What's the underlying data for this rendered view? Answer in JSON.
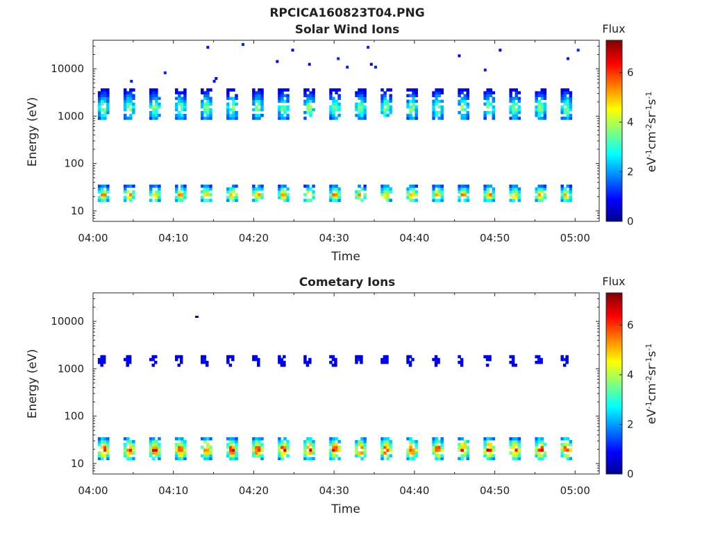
{
  "figure": {
    "title": "RPCICA160823T04.PNG"
  },
  "colormap": {
    "name": "jet",
    "stops": [
      "#00008f",
      "#0000ff",
      "#00ffff",
      "#ffff00",
      "#ff0000",
      "#800000"
    ]
  },
  "chart_data": [
    {
      "type": "heatmap",
      "title": "Solar Wind Ions",
      "xlabel": "Time",
      "ylabel": "Energy (eV)",
      "x_ticks": [
        "04:00",
        "04:10",
        "04:20",
        "04:30",
        "04:40",
        "04:50",
        "05:00"
      ],
      "x_range_min": [
        0,
        63
      ],
      "y_scale": "log",
      "y_ticks": [
        10,
        100,
        1000,
        10000
      ],
      "y_tick_labels": [
        "10",
        "100",
        "1000",
        "10000"
      ],
      "y_range": [
        6,
        40000
      ],
      "colorbar": {
        "title": "Flux",
        "label": "eV-1cm-2sr-1s-1",
        "ticks": [
          0,
          2,
          4,
          6
        ],
        "range": [
          0,
          7.3
        ]
      },
      "scan_period_min": 3.2,
      "scan_start_min": 0.6,
      "scan_count": 19,
      "features": [
        {
          "name": "solar wind beam",
          "energy_center_eV": 1500,
          "energy_span_eV": [
            900,
            4200
          ],
          "flux_peak": 4.2
        },
        {
          "name": "low-energy population",
          "energy_center_eV": 22,
          "energy_span_eV": [
            15,
            38
          ],
          "flux_peak": 5.8
        },
        {
          "name": "sporadic high-energy counts",
          "energy_span_eV": [
            5000,
            35000
          ],
          "flux_peak": 1.2
        }
      ]
    },
    {
      "type": "heatmap",
      "title": "Cometary Ions",
      "xlabel": "Time",
      "ylabel": "Energy (eV)",
      "x_ticks": [
        "04:00",
        "04:10",
        "04:20",
        "04:30",
        "04:40",
        "04:50",
        "05:00"
      ],
      "x_range_min": [
        0,
        63
      ],
      "y_scale": "log",
      "y_ticks": [
        10,
        100,
        1000,
        10000
      ],
      "y_tick_labels": [
        "10",
        "100",
        "1000",
        "10000"
      ],
      "y_range": [
        6,
        40000
      ],
      "colorbar": {
        "title": "Flux",
        "label": "eV-1cm-2sr-1s-1",
        "ticks": [
          0,
          2,
          4,
          6
        ],
        "range": [
          0,
          7.3
        ]
      },
      "scan_period_min": 3.2,
      "scan_start_min": 0.6,
      "scan_count": 19,
      "features": [
        {
          "name": "cometary ion population",
          "energy_center_eV": 20,
          "energy_span_eV": [
            12,
            38
          ],
          "flux_peak": 7.0
        },
        {
          "name": "solar wind beam (weak)",
          "energy_center_eV": 1500,
          "energy_span_eV": [
            1100,
            2000
          ],
          "flux_peak": 1.3
        },
        {
          "name": "isolated high-energy count",
          "energy_center_eV": 12500,
          "flux_peak": 0.8
        }
      ]
    }
  ]
}
